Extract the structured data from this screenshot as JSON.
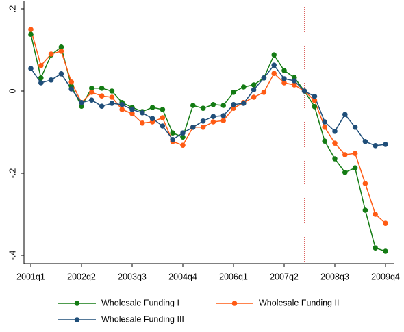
{
  "chart_data": {
    "type": "line",
    "categories": [
      "2001q1",
      null,
      null,
      null,
      null,
      "2002q2",
      null,
      null,
      null,
      null,
      "2003q3",
      null,
      null,
      null,
      null,
      "2004q4",
      null,
      null,
      null,
      null,
      "2006q1",
      null,
      null,
      null,
      null,
      "2007q2",
      null,
      null,
      null,
      null,
      "2008q3",
      null,
      null,
      null,
      null,
      "2009q4"
    ],
    "series": [
      {
        "name": "Wholesale Funding I",
        "color": "#137b13",
        "values": [
          0.138,
          0.032,
          0.088,
          0.107,
          0.012,
          -0.037,
          0.007,
          0.007,
          0.0,
          -0.028,
          -0.04,
          -0.05,
          -0.04,
          -0.045,
          -0.102,
          -0.112,
          -0.035,
          -0.042,
          -0.033,
          -0.035,
          -0.003,
          0.01,
          0.015,
          0.032,
          0.088,
          0.05,
          0.033,
          0,
          -0.038,
          -0.122,
          -0.165,
          -0.198,
          -0.187,
          -0.29,
          -0.382,
          -0.39
        ]
      },
      {
        "name": "Wholesale Funding II",
        "color": "#ff5b14",
        "values": [
          0.15,
          0.062,
          0.09,
          0.097,
          0.022,
          -0.028,
          -0.003,
          -0.012,
          -0.015,
          -0.045,
          -0.055,
          -0.078,
          -0.075,
          -0.065,
          -0.123,
          -0.132,
          -0.088,
          -0.088,
          -0.075,
          -0.072,
          -0.042,
          -0.028,
          -0.015,
          -0.003,
          0.043,
          0.02,
          0.015,
          0,
          -0.023,
          -0.088,
          -0.127,
          -0.155,
          -0.152,
          -0.225,
          -0.3,
          -0.322
        ]
      },
      {
        "name": "Wholesale Funding III",
        "color": "#1f4e79",
        "values": [
          0.055,
          0.02,
          0.027,
          0.042,
          0.005,
          -0.028,
          -0.022,
          -0.037,
          -0.03,
          -0.033,
          -0.045,
          -0.053,
          -0.067,
          -0.085,
          -0.118,
          -0.102,
          -0.088,
          -0.073,
          -0.062,
          -0.06,
          -0.033,
          -0.03,
          0.003,
          0.032,
          0.063,
          0.03,
          0.025,
          0,
          -0.013,
          -0.075,
          -0.098,
          -0.057,
          -0.088,
          -0.123,
          -0.133,
          -0.13
        ]
      }
    ],
    "ylim": [
      -0.42,
      0.22
    ],
    "yticks": [
      {
        "value": 0.2,
        "label": ".2"
      },
      0,
      {
        "value": -0.2,
        "label": "-.2"
      },
      {
        "value": -0.4,
        "label": "-.4"
      }
    ],
    "grid": false,
    "reference_line": {
      "category_index": 27,
      "color": "#d9534f"
    },
    "legend": "bottom"
  }
}
